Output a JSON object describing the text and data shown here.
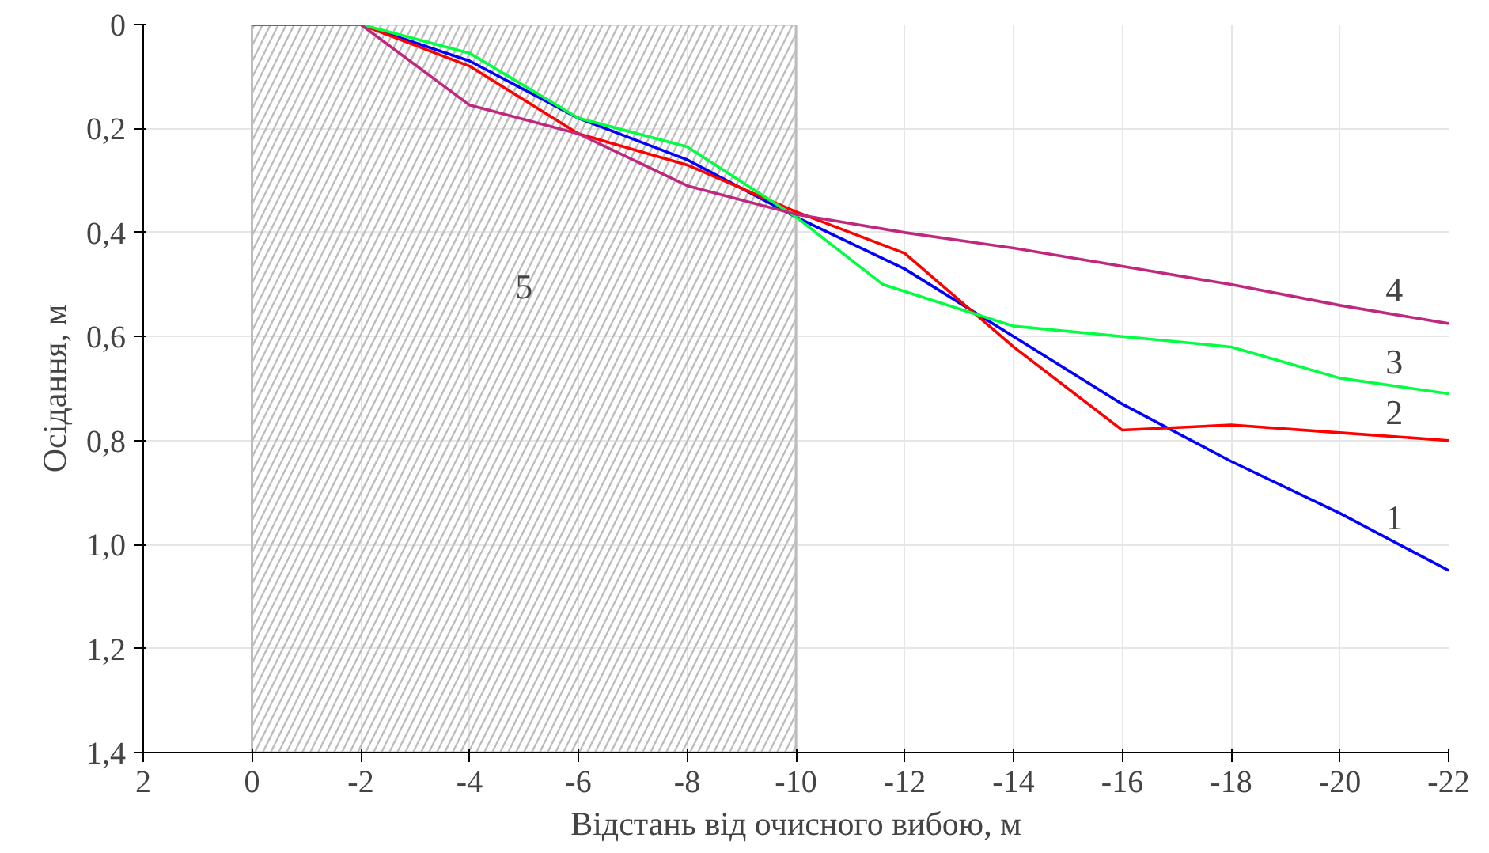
{
  "chart_data": {
    "type": "line",
    "xlabel": "Відстань від очисного вибою, м",
    "ylabel": "Осідання, м",
    "xlim": [
      2,
      -22
    ],
    "ylim": [
      1.4,
      0
    ],
    "xticks": [
      2,
      0,
      -2,
      -4,
      -6,
      -8,
      -10,
      -12,
      -14,
      -16,
      -18,
      -20,
      -22
    ],
    "yticks": [
      0,
      {
        "value": 0.2,
        "label": "0,2"
      },
      {
        "value": 0.4,
        "label": "0,4"
      },
      {
        "value": 0.6,
        "label": "0,6"
      },
      {
        "value": 0.8,
        "label": "0,8"
      },
      {
        "value": 1.0,
        "label": "1,0"
      },
      {
        "value": 1.2,
        "label": "1,2"
      },
      {
        "value": 1.4,
        "label": "1,4"
      }
    ],
    "grid": true,
    "marker": "none",
    "line_style": "solid",
    "bands": [
      {
        "axis": "x",
        "from": 0,
        "to": -10,
        "label": "5",
        "color": "#bdbdbd"
      }
    ],
    "series": [
      {
        "name": "1",
        "color": "#0000ff",
        "x": [
          0,
          -2,
          -4,
          -6,
          -8,
          -10,
          -12,
          -14,
          -16,
          -18,
          -20,
          -22
        ],
        "values": [
          0,
          0,
          0.07,
          0.18,
          0.26,
          0.37,
          0.47,
          0.6,
          0.73,
          0.84,
          0.94,
          1.05
        ]
      },
      {
        "name": "2",
        "color": "#ff0000",
        "x": [
          0,
          -2,
          -4,
          -6,
          -8,
          -10,
          -12,
          -14,
          -16,
          -18,
          -20,
          -22
        ],
        "values": [
          0,
          0,
          0.08,
          0.21,
          0.27,
          0.36,
          0.44,
          0.62,
          0.78,
          0.77,
          0.785,
          0.8
        ]
      },
      {
        "name": "3",
        "color": "#00ff40",
        "x": [
          0,
          -2,
          -4,
          -6,
          -8,
          -10,
          -11.6,
          -14,
          -16,
          -18,
          -20,
          -22
        ],
        "values": [
          0,
          0,
          0.055,
          0.18,
          0.235,
          0.37,
          0.5,
          0.58,
          0.6,
          0.62,
          0.68,
          0.71
        ]
      },
      {
        "name": "4",
        "color": "#c0287f",
        "x": [
          0,
          -2,
          -4,
          -6,
          -8,
          -10,
          -12,
          -14,
          -16,
          -18,
          -20,
          -22
        ],
        "values": [
          0,
          0,
          0.155,
          0.21,
          0.31,
          0.365,
          0.4,
          0.43,
          0.465,
          0.5,
          0.54,
          0.575
        ]
      }
    ]
  }
}
